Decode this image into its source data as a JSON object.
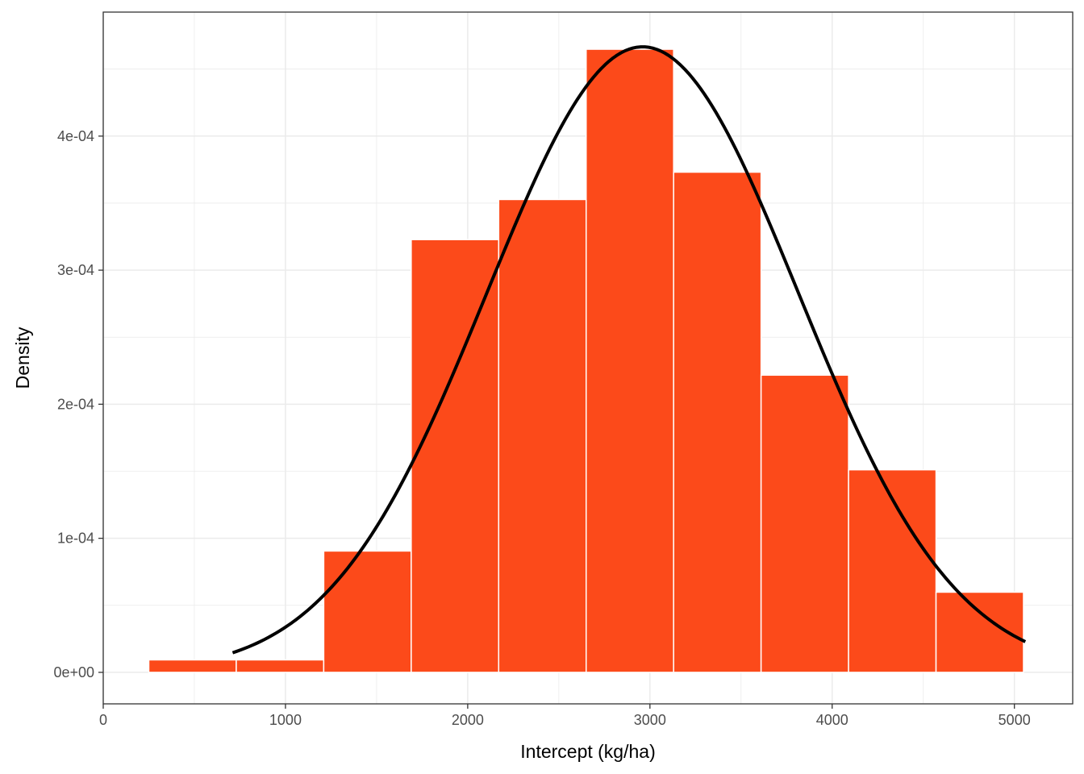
{
  "chart_data": {
    "type": "bar",
    "subtype": "histogram-with-density-curve",
    "title": "",
    "xlabel": "Intercept (kg/ha)",
    "ylabel": "Density",
    "xlim": [
      0,
      5320
    ],
    "ylim": [
      -2.35e-05,
      0.0004925
    ],
    "x_ticks": [
      0,
      1000,
      2000,
      3000,
      4000,
      5000
    ],
    "x_tick_labels": [
      "0",
      "1000",
      "2000",
      "3000",
      "4000",
      "5000"
    ],
    "y_ticks": [
      0,
      0.0001,
      0.0002,
      0.0003,
      0.0004
    ],
    "y_tick_labels": [
      "0e+00",
      "1e-04",
      "2e-04",
      "3e-04",
      "4e-04"
    ],
    "bin_width": 480,
    "bins": [
      {
        "x0": 250,
        "x1": 730,
        "density": 9.3e-06
      },
      {
        "x0": 730,
        "x1": 1210,
        "density": 9.3e-06
      },
      {
        "x0": 1210,
        "x1": 1690,
        "density": 9.05e-05
      },
      {
        "x0": 1690,
        "x1": 2170,
        "density": 0.0003228
      },
      {
        "x0": 2170,
        "x1": 2650,
        "density": 0.0003527
      },
      {
        "x0": 2650,
        "x1": 3130,
        "density": 0.0004648
      },
      {
        "x0": 3130,
        "x1": 3610,
        "density": 0.0003731
      },
      {
        "x0": 3610,
        "x1": 4090,
        "density": 0.0002217
      },
      {
        "x0": 4090,
        "x1": 4570,
        "density": 0.0001511
      },
      {
        "x0": 4570,
        "x1": 5050,
        "density": 5.98e-05
      }
    ],
    "density_curve": {
      "type": "normal",
      "mean": 2960,
      "sd": 855,
      "x_range": [
        710,
        5060
      ]
    },
    "grid": true,
    "legend": "none",
    "colors": {
      "bar_fill": "#fc4a1a",
      "bar_border": "#ffffff",
      "curve": "#000000",
      "grid": "#ebebeb",
      "panel_border": "#333333",
      "tick_label": "#4d4d4d"
    }
  }
}
